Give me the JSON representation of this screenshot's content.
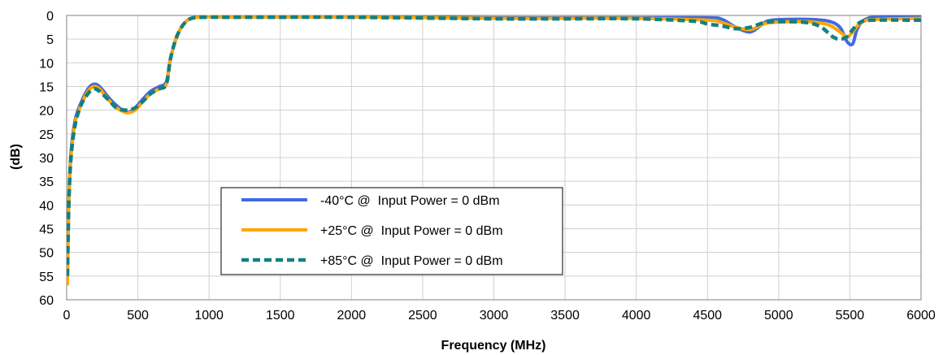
{
  "chart_data": {
    "type": "line",
    "title": "",
    "xlabel": "Frequency (MHz)",
    "ylabel": "(dB)",
    "xlim": [
      0,
      6000
    ],
    "ylim": [
      0,
      60
    ],
    "y_inverted": true,
    "grid": true,
    "legend_position": "center-left",
    "x_ticks": [
      "0",
      "500",
      "1000",
      "1500",
      "2000",
      "2500",
      "3000",
      "3500",
      "4000",
      "4500",
      "5000",
      "5500",
      "6000"
    ],
    "y_ticks": [
      "0",
      "5",
      "10",
      "15",
      "20",
      "25",
      "30",
      "35",
      "40",
      "45",
      "50",
      "55",
      "60"
    ],
    "x_tick_values": [
      0,
      500,
      1000,
      1500,
      2000,
      2500,
      3000,
      3500,
      4000,
      4500,
      5000,
      5500,
      6000
    ],
    "y_tick_values": [
      0,
      5,
      10,
      15,
      20,
      25,
      30,
      35,
      40,
      45,
      50,
      55,
      60
    ],
    "series": [
      {
        "name": "-40°C @  Input Power = 0 dBm",
        "color": "#4169e1",
        "style": "solid",
        "points": [
          [
            5,
            56
          ],
          [
            15,
            40
          ],
          [
            30,
            29
          ],
          [
            60,
            22
          ],
          [
            100,
            18.5
          ],
          [
            150,
            15.5
          ],
          [
            190,
            14.5
          ],
          [
            230,
            15
          ],
          [
            300,
            17.5
          ],
          [
            350,
            19
          ],
          [
            420,
            20.5
          ],
          [
            480,
            19.5
          ],
          [
            540,
            17.5
          ],
          [
            590,
            16
          ],
          [
            650,
            15
          ],
          [
            700,
            14
          ],
          [
            730,
            9
          ],
          [
            780,
            4
          ],
          [
            850,
            1
          ],
          [
            950,
            0.3
          ],
          [
            1200,
            0.3
          ],
          [
            2000,
            0.3
          ],
          [
            3000,
            0.5
          ],
          [
            3500,
            0.5
          ],
          [
            4000,
            0.5
          ],
          [
            4500,
            0.5
          ],
          [
            4600,
            0.8
          ],
          [
            4700,
            2.5
          ],
          [
            4800,
            3.5
          ],
          [
            4880,
            2
          ],
          [
            4950,
            1
          ],
          [
            5200,
            0.8
          ],
          [
            5350,
            1.2
          ],
          [
            5430,
            2.5
          ],
          [
            5480,
            5.5
          ],
          [
            5520,
            6
          ],
          [
            5550,
            3
          ],
          [
            5600,
            1
          ],
          [
            5700,
            0.3
          ],
          [
            6000,
            0.3
          ]
        ]
      },
      {
        "name": "+25°C @  Input Power = 0 dBm",
        "color": "#ffa500",
        "style": "solid",
        "points": [
          [
            5,
            57
          ],
          [
            15,
            40
          ],
          [
            30,
            30
          ],
          [
            60,
            22.5
          ],
          [
            100,
            19
          ],
          [
            150,
            16
          ],
          [
            190,
            15
          ],
          [
            230,
            15.5
          ],
          [
            300,
            18
          ],
          [
            350,
            19.5
          ],
          [
            420,
            20.5
          ],
          [
            480,
            20
          ],
          [
            540,
            18
          ],
          [
            590,
            16.5
          ],
          [
            650,
            15.5
          ],
          [
            700,
            14.5
          ],
          [
            730,
            9
          ],
          [
            780,
            4
          ],
          [
            850,
            1
          ],
          [
            950,
            0.3
          ],
          [
            1200,
            0.3
          ],
          [
            2000,
            0.3
          ],
          [
            3000,
            0.6
          ],
          [
            3500,
            0.6
          ],
          [
            4000,
            0.6
          ],
          [
            4500,
            1
          ],
          [
            4600,
            1.5
          ],
          [
            4700,
            2.5
          ],
          [
            4800,
            3
          ],
          [
            4880,
            2
          ],
          [
            4950,
            1.5
          ],
          [
            5200,
            1.3
          ],
          [
            5350,
            2
          ],
          [
            5430,
            3.5
          ],
          [
            5480,
            4.5
          ],
          [
            5520,
            3.5
          ],
          [
            5560,
            2
          ],
          [
            5620,
            1
          ],
          [
            5700,
            0.8
          ],
          [
            6000,
            0.6
          ]
        ]
      },
      {
        "name": "+85°C @  Input Power = 0 dBm",
        "color": "#138080",
        "style": "dashed",
        "points": [
          [
            5,
            55
          ],
          [
            15,
            40
          ],
          [
            30,
            30
          ],
          [
            60,
            23
          ],
          [
            100,
            19
          ],
          [
            150,
            16.5
          ],
          [
            190,
            15.5
          ],
          [
            230,
            16
          ],
          [
            300,
            18
          ],
          [
            350,
            19.5
          ],
          [
            420,
            20
          ],
          [
            480,
            19.5
          ],
          [
            540,
            18
          ],
          [
            590,
            16.5
          ],
          [
            650,
            15.5
          ],
          [
            700,
            14.5
          ],
          [
            730,
            9
          ],
          [
            780,
            4
          ],
          [
            850,
            1
          ],
          [
            950,
            0.4
          ],
          [
            1200,
            0.4
          ],
          [
            2000,
            0.4
          ],
          [
            3000,
            0.7
          ],
          [
            3500,
            0.7
          ],
          [
            4000,
            0.7
          ],
          [
            4400,
            1.2
          ],
          [
            4500,
            1.8
          ],
          [
            4600,
            2.2
          ],
          [
            4700,
            2.8
          ],
          [
            4800,
            2.5
          ],
          [
            4900,
            1.5
          ],
          [
            5000,
            1.3
          ],
          [
            5200,
            1.5
          ],
          [
            5300,
            2.5
          ],
          [
            5380,
            4.5
          ],
          [
            5430,
            5
          ],
          [
            5480,
            4.5
          ],
          [
            5520,
            3
          ],
          [
            5570,
            1.5
          ],
          [
            5650,
            1
          ],
          [
            6000,
            1
          ]
        ]
      }
    ]
  }
}
